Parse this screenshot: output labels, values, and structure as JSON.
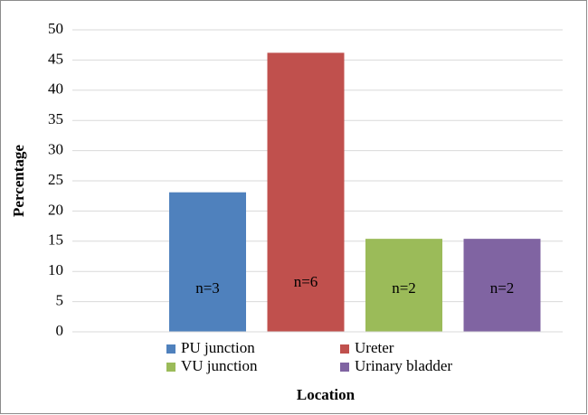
{
  "chart_data": {
    "type": "bar",
    "xlabel": "Location",
    "ylabel": "Percentage",
    "series": [
      {
        "name": "PU junction",
        "color": "#4f81bd",
        "values": [
          23.1
        ],
        "label": "n=3"
      },
      {
        "name": "Ureter",
        "color": "#c0504d",
        "values": [
          46.2
        ],
        "label": "n=6"
      },
      {
        "name": "VU junction",
        "color": "#9bbb59",
        "values": [
          15.4
        ],
        "label": "n=2"
      },
      {
        "name": "Urinary bladder",
        "color": "#8064a2",
        "values": [
          15.4
        ],
        "label": "n=2"
      }
    ],
    "ylim": [
      0,
      50
    ],
    "yticks": [
      0,
      5,
      10,
      15,
      20,
      25,
      30,
      35,
      40,
      45,
      50
    ],
    "grid": true
  }
}
